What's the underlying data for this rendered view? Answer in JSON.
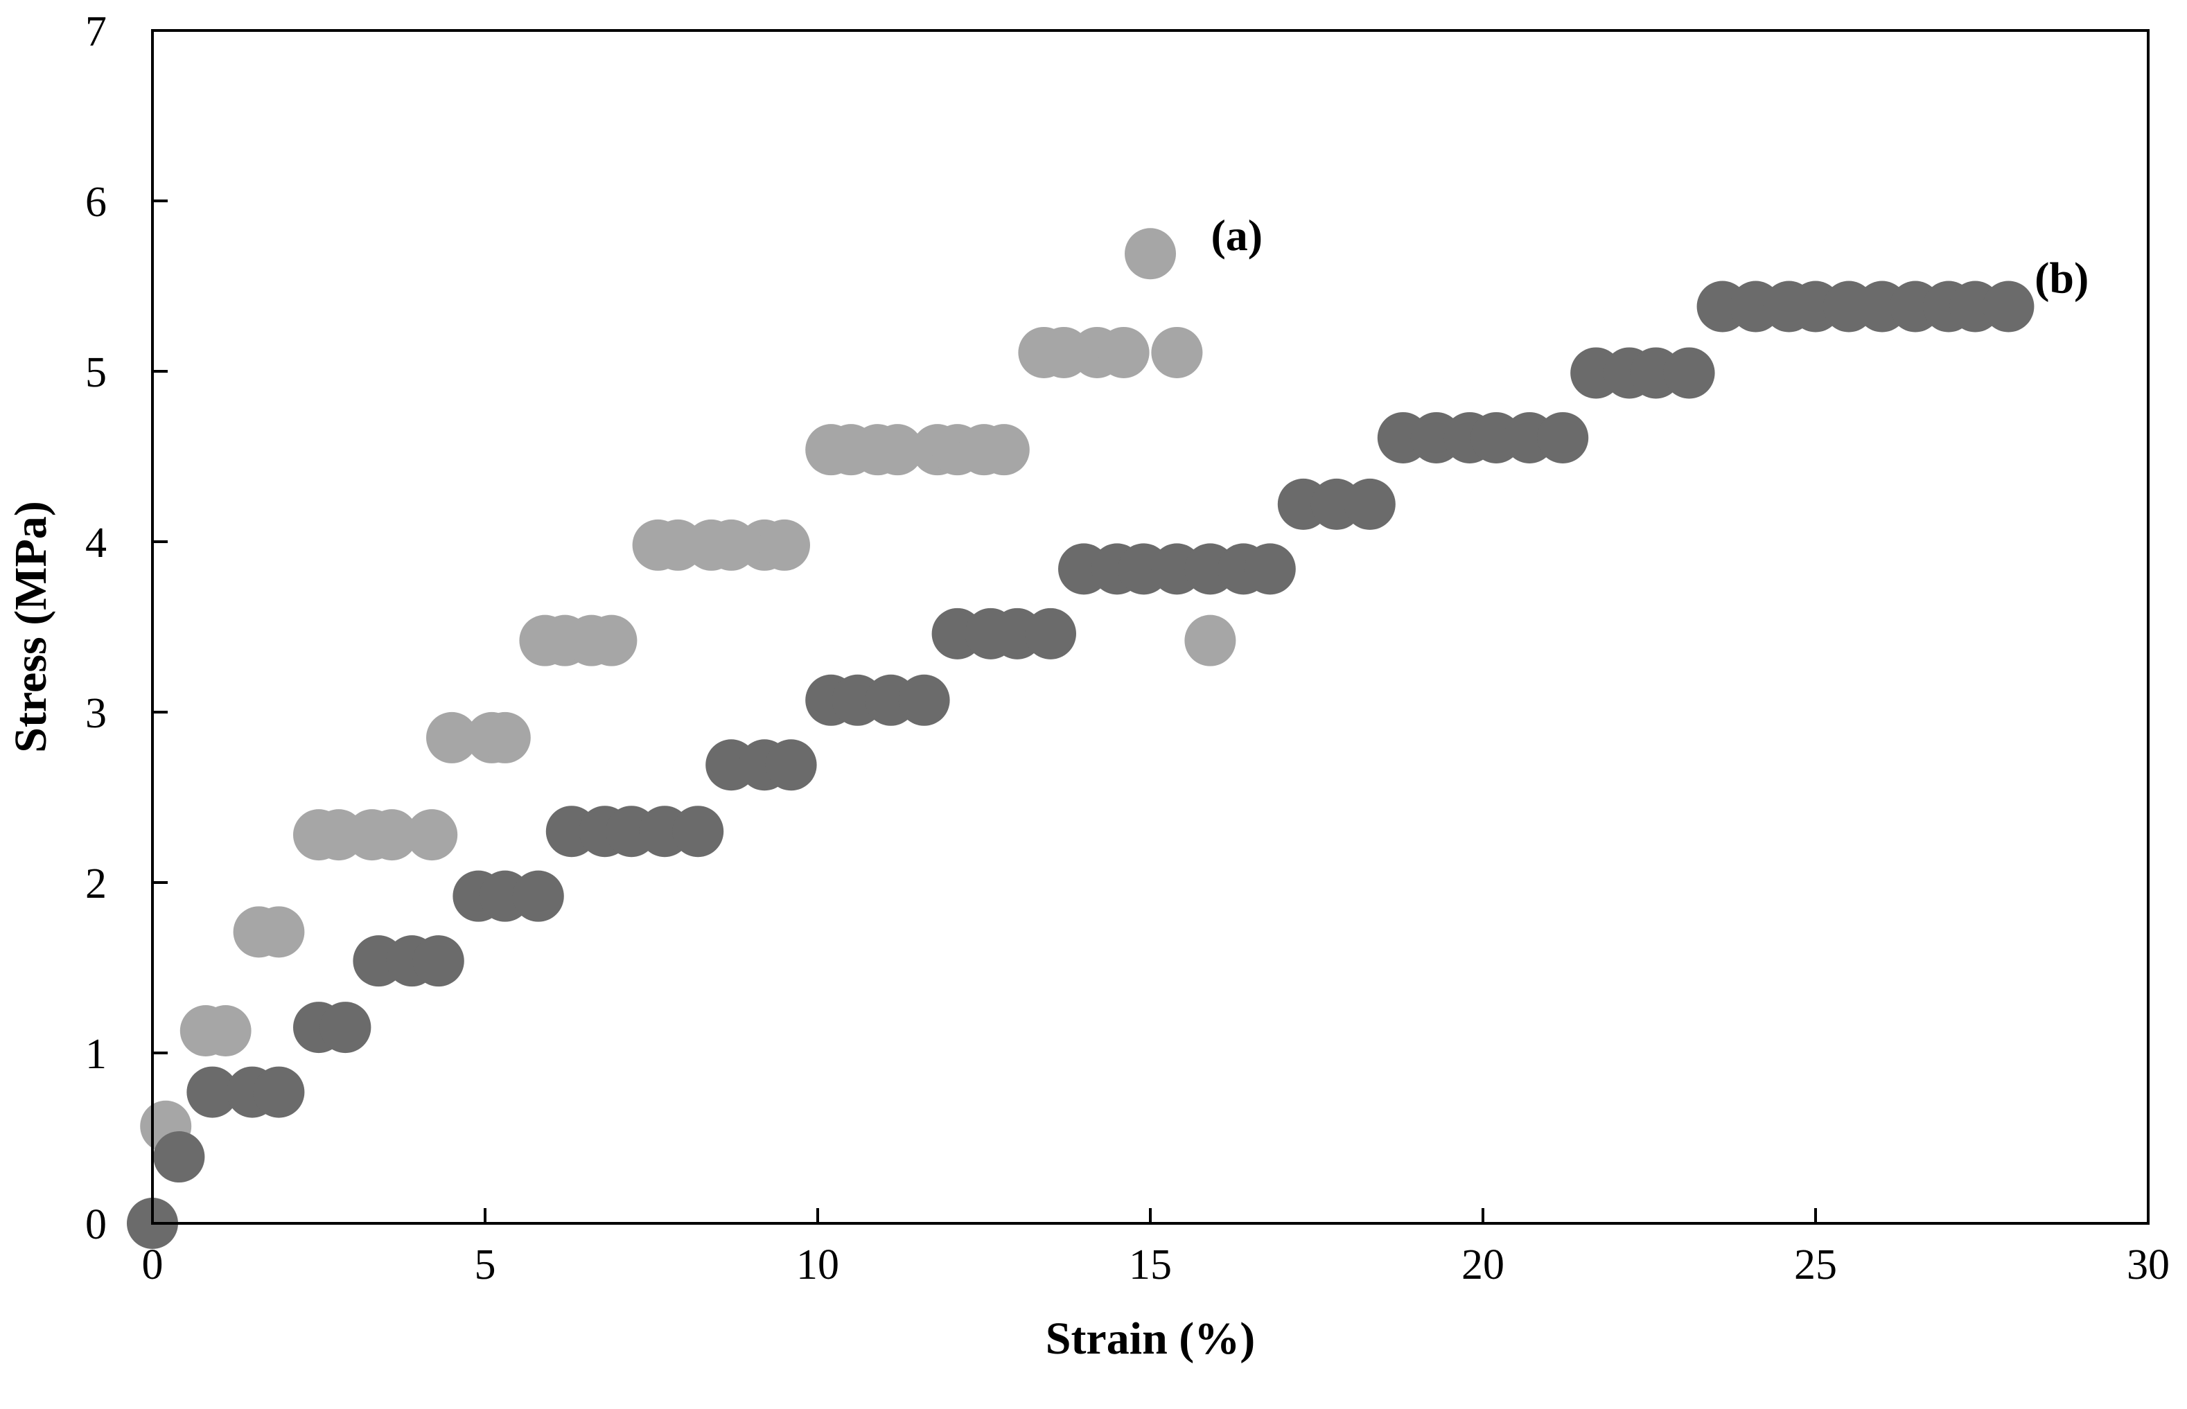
{
  "chart_data": {
    "type": "scatter",
    "title": "",
    "xlabel": "Strain (%)",
    "ylabel": "Stress (MPa)",
    "xlim": [
      0,
      30
    ],
    "ylim": [
      0,
      7
    ],
    "xticks": [
      "0",
      "5",
      "10",
      "15",
      "20",
      "25",
      "30"
    ],
    "yticks": [
      "0",
      "1",
      "2",
      "3",
      "4",
      "5",
      "6",
      "7"
    ],
    "grid": false,
    "legend": "none",
    "annotations": [
      {
        "text": "(a)",
        "x": 16.3,
        "y": 5.8
      },
      {
        "text": "(b)",
        "x": 28.7,
        "y": 5.55
      }
    ],
    "series": [
      {
        "color": "#a6a6a6",
        "points": [
          [
            0.2,
            0.57
          ],
          [
            0.8,
            1.13
          ],
          [
            1.1,
            1.13
          ],
          [
            1.6,
            1.71
          ],
          [
            1.9,
            1.71
          ],
          [
            2.5,
            2.28
          ],
          [
            2.8,
            2.28
          ],
          [
            3.3,
            2.28
          ],
          [
            3.6,
            2.28
          ],
          [
            4.2,
            2.28
          ],
          [
            4.5,
            2.85
          ],
          [
            5.1,
            2.85
          ],
          [
            5.3,
            2.85
          ],
          [
            5.9,
            3.42
          ],
          [
            6.2,
            3.42
          ],
          [
            6.6,
            3.42
          ],
          [
            6.9,
            3.42
          ],
          [
            7.6,
            3.98
          ],
          [
            7.9,
            3.98
          ],
          [
            8.4,
            3.98
          ],
          [
            8.7,
            3.98
          ],
          [
            9.2,
            3.98
          ],
          [
            9.5,
            3.98
          ],
          [
            10.2,
            4.54
          ],
          [
            10.5,
            4.54
          ],
          [
            10.9,
            4.54
          ],
          [
            11.2,
            4.54
          ],
          [
            11.8,
            4.54
          ],
          [
            12.1,
            4.54
          ],
          [
            12.5,
            4.54
          ],
          [
            12.8,
            4.54
          ],
          [
            13.4,
            5.11
          ],
          [
            13.7,
            5.11
          ],
          [
            14.2,
            5.11
          ],
          [
            14.6,
            5.11
          ],
          [
            15.4,
            5.11
          ],
          [
            15.0,
            5.69
          ],
          [
            15.9,
            3.42
          ]
        ]
      },
      {
        "color": "#6b6b6b",
        "points": [
          [
            0.0,
            0.0
          ],
          [
            0.4,
            0.39
          ],
          [
            0.9,
            0.77
          ],
          [
            1.5,
            0.77
          ],
          [
            1.9,
            0.77
          ],
          [
            2.5,
            1.15
          ],
          [
            2.9,
            1.15
          ],
          [
            3.4,
            1.54
          ],
          [
            3.9,
            1.54
          ],
          [
            4.3,
            1.54
          ],
          [
            4.9,
            1.92
          ],
          [
            5.3,
            1.92
          ],
          [
            5.8,
            1.92
          ],
          [
            6.3,
            2.3
          ],
          [
            6.8,
            2.3
          ],
          [
            7.2,
            2.3
          ],
          [
            7.7,
            2.3
          ],
          [
            8.2,
            2.3
          ],
          [
            8.7,
            2.69
          ],
          [
            9.2,
            2.69
          ],
          [
            9.6,
            2.69
          ],
          [
            10.2,
            3.07
          ],
          [
            10.6,
            3.07
          ],
          [
            11.1,
            3.07
          ],
          [
            11.6,
            3.07
          ],
          [
            12.1,
            3.46
          ],
          [
            12.6,
            3.46
          ],
          [
            13.0,
            3.46
          ],
          [
            13.5,
            3.46
          ],
          [
            14.0,
            3.84
          ],
          [
            14.5,
            3.84
          ],
          [
            14.9,
            3.84
          ],
          [
            15.4,
            3.84
          ],
          [
            15.9,
            3.84
          ],
          [
            16.4,
            3.84
          ],
          [
            16.8,
            3.84
          ],
          [
            17.3,
            4.22
          ],
          [
            17.8,
            4.22
          ],
          [
            18.3,
            4.22
          ],
          [
            18.8,
            4.61
          ],
          [
            19.3,
            4.61
          ],
          [
            19.8,
            4.61
          ],
          [
            20.2,
            4.61
          ],
          [
            20.7,
            4.61
          ],
          [
            21.2,
            4.61
          ],
          [
            21.7,
            4.99
          ],
          [
            22.2,
            4.99
          ],
          [
            22.6,
            4.99
          ],
          [
            23.1,
            4.99
          ],
          [
            23.6,
            5.38
          ],
          [
            24.1,
            5.38
          ],
          [
            24.6,
            5.38
          ],
          [
            25.0,
            5.38
          ],
          [
            25.5,
            5.38
          ],
          [
            26.0,
            5.38
          ],
          [
            26.5,
            5.38
          ],
          [
            27.0,
            5.38
          ],
          [
            27.4,
            5.38
          ],
          [
            27.9,
            5.38
          ]
        ]
      }
    ]
  }
}
